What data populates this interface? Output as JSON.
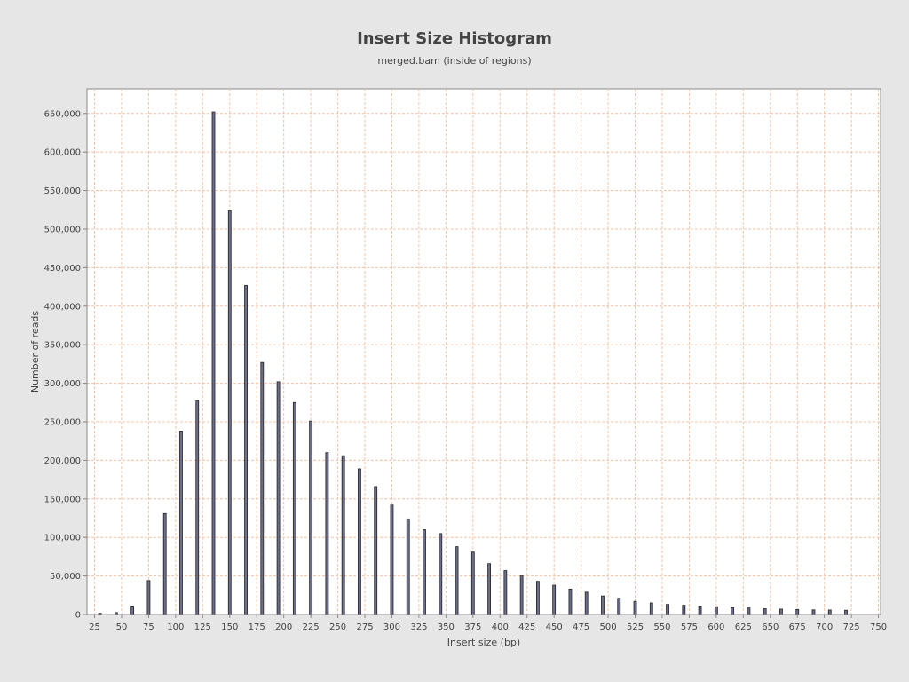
{
  "header": {
    "title": "Insert Size Histogram",
    "subtitle": "merged.bam (inside of regions)"
  },
  "colors": {
    "background": "#e6e6e6",
    "plot_background": "#ffffff",
    "gridline": "#f2c4a8",
    "bar_fill": "#6b6e8c",
    "bar_stroke": "#222222",
    "axis": "#888888",
    "text": "#444444"
  },
  "chart_data": {
    "type": "bar",
    "title": "Insert Size Histogram",
    "subtitle": "merged.bam (inside of regions)",
    "xlabel": "Insert size (bp)",
    "ylabel": "Number of reads",
    "xlim": [
      18,
      752
    ],
    "ylim": [
      0,
      682000
    ],
    "x_ticks": [
      25,
      50,
      75,
      100,
      125,
      150,
      175,
      200,
      225,
      250,
      275,
      300,
      325,
      350,
      375,
      400,
      425,
      450,
      475,
      500,
      525,
      550,
      575,
      600,
      625,
      650,
      675,
      700,
      725,
      750
    ],
    "x_tick_labels": [
      "25",
      "50",
      "75",
      "100",
      "125",
      "150",
      "175",
      "200",
      "225",
      "250",
      "275",
      "300",
      "325",
      "350",
      "375",
      "400",
      "425",
      "450",
      "475",
      "500",
      "525",
      "550",
      "575",
      "600",
      "625",
      "650",
      "675",
      "700",
      "725",
      "750"
    ],
    "y_ticks": [
      0,
      50000,
      100000,
      150000,
      200000,
      250000,
      300000,
      350000,
      400000,
      450000,
      500000,
      550000,
      600000,
      650000
    ],
    "y_tick_labels": [
      "0",
      "50,000",
      "100,000",
      "150,000",
      "200,000",
      "250,000",
      "300,000",
      "350,000",
      "400,000",
      "450,000",
      "500,000",
      "550,000",
      "600,000",
      "650,000"
    ],
    "grid": true,
    "x": [
      30,
      45,
      60,
      75,
      90,
      105,
      120,
      135,
      150,
      165,
      180,
      195,
      210,
      225,
      240,
      255,
      270,
      285,
      300,
      315,
      330,
      345,
      360,
      375,
      390,
      405,
      420,
      435,
      450,
      465,
      480,
      495,
      510,
      525,
      540,
      555,
      570,
      585,
      600,
      615,
      630,
      645,
      660,
      675,
      690,
      705,
      720
    ],
    "values": [
      1500,
      2500,
      11000,
      44000,
      131000,
      238000,
      277000,
      652000,
      524000,
      427000,
      327000,
      302000,
      275000,
      251000,
      210000,
      206000,
      189000,
      166000,
      142000,
      124000,
      110000,
      105000,
      88000,
      81000,
      66000,
      57000,
      50000,
      43000,
      38000,
      33000,
      29000,
      24000,
      21000,
      17000,
      15000,
      13000,
      12000,
      11000,
      10000,
      9000,
      8500,
      7500,
      7000,
      6500,
      6000,
      5800,
      5500
    ]
  }
}
